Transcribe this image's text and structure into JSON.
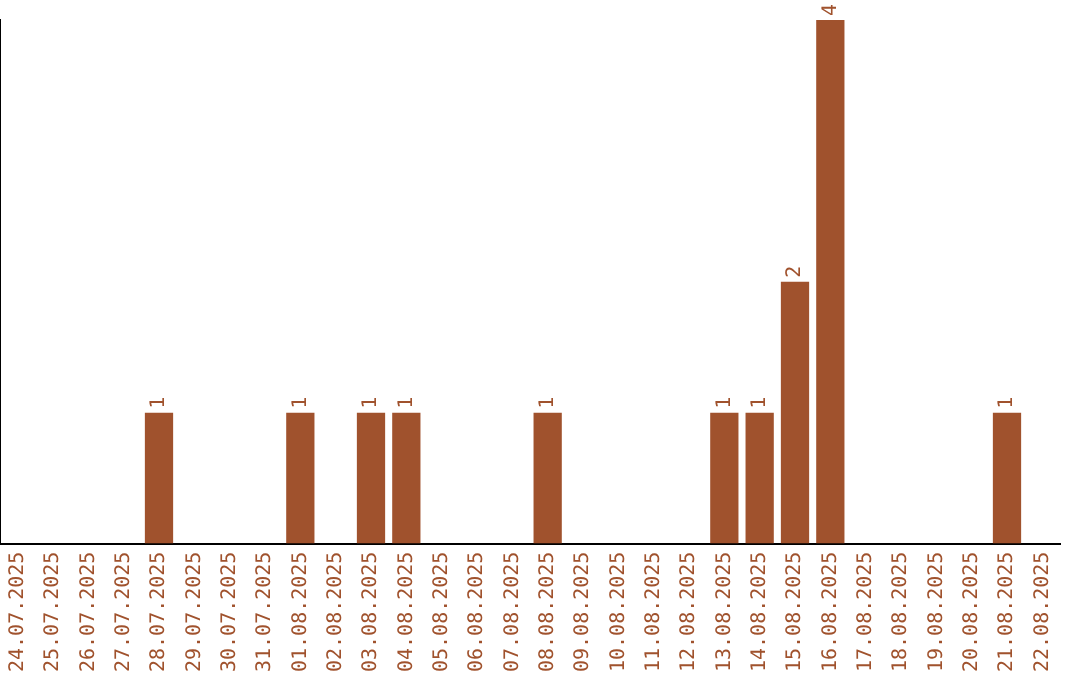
{
  "chart_data": {
    "type": "bar",
    "categories": [
      "24.07.2025",
      "25.07.2025",
      "26.07.2025",
      "27.07.2025",
      "28.07.2025",
      "29.07.2025",
      "30.07.2025",
      "31.07.2025",
      "01.08.2025",
      "02.08.2025",
      "03.08.2025",
      "04.08.2025",
      "05.08.2025",
      "06.08.2025",
      "07.08.2025",
      "08.08.2025",
      "09.08.2025",
      "10.08.2025",
      "11.08.2025",
      "12.08.2025",
      "13.08.2025",
      "14.08.2025",
      "15.08.2025",
      "16.08.2025",
      "17.08.2025",
      "18.08.2025",
      "19.08.2025",
      "20.08.2025",
      "21.08.2025",
      "22.08.2025"
    ],
    "values": [
      0,
      0,
      0,
      0,
      1,
      0,
      0,
      0,
      1,
      0,
      1,
      1,
      0,
      0,
      0,
      1,
      0,
      0,
      0,
      0,
      1,
      1,
      2,
      4,
      0,
      0,
      0,
      0,
      1,
      0
    ],
    "value_labels": [
      null,
      null,
      null,
      null,
      "1",
      null,
      null,
      null,
      "1",
      null,
      "1",
      "1",
      null,
      null,
      null,
      "1",
      null,
      null,
      null,
      null,
      "1",
      "1",
      "2",
      "4",
      null,
      null,
      null,
      null,
      "1",
      null
    ],
    "color": "#a0522d",
    "tick_labels": "x",
    "grid": false,
    "legend": false
  }
}
